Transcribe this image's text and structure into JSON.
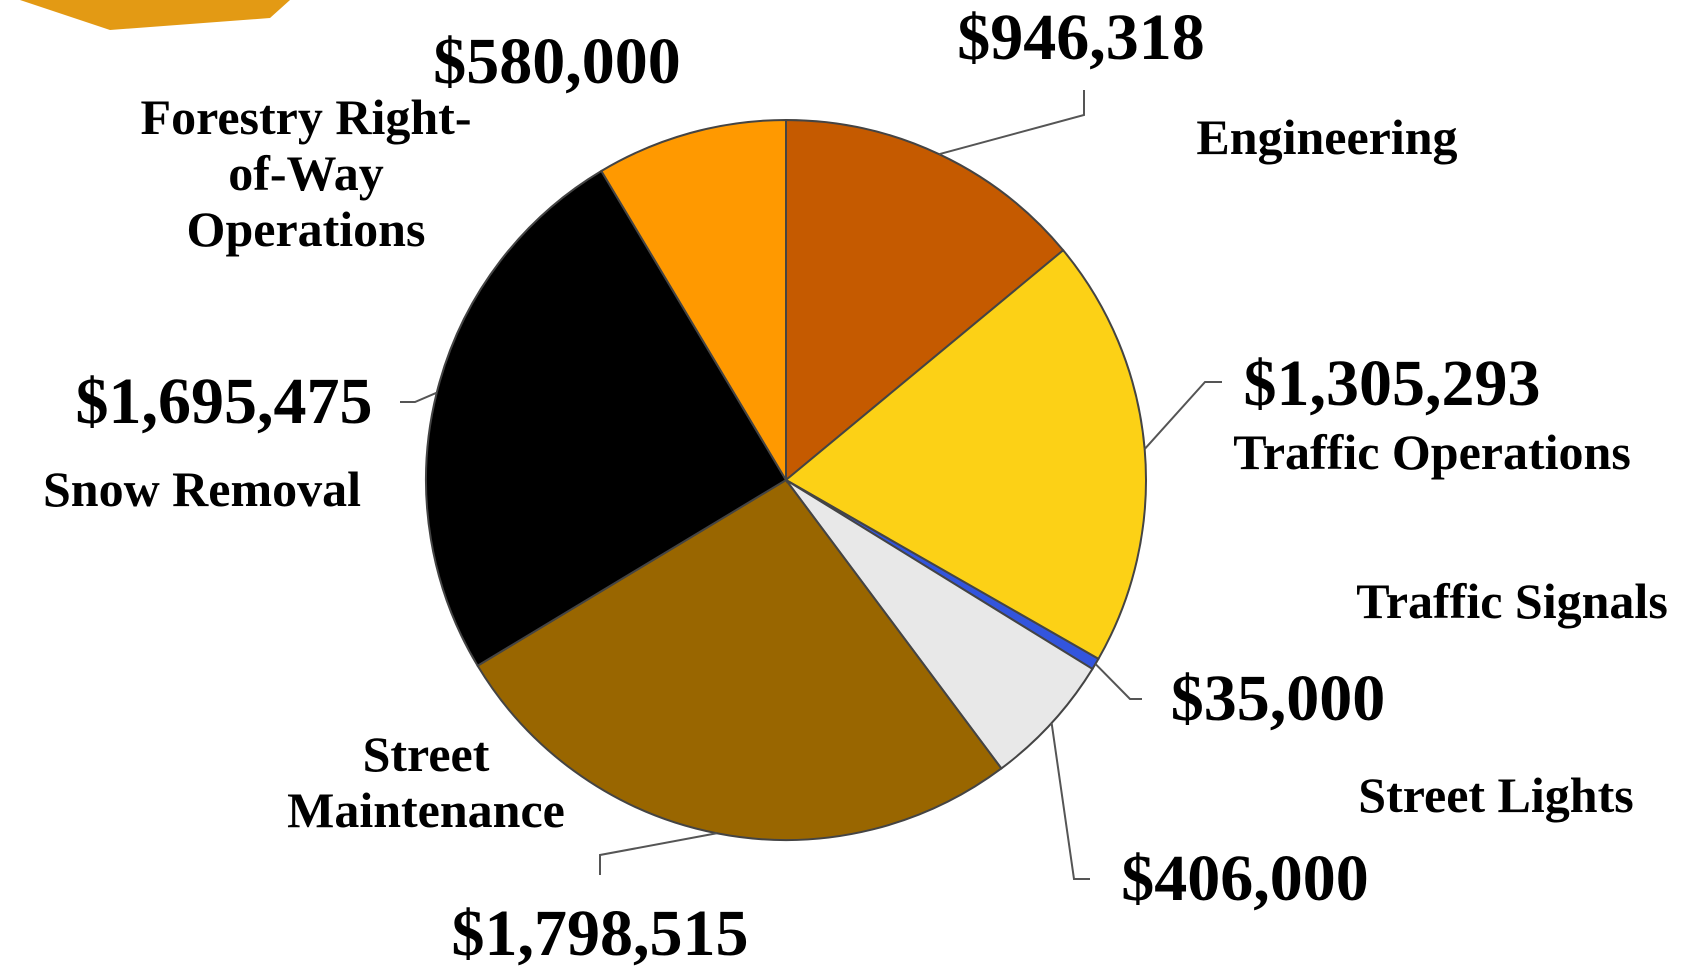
{
  "chart_data": {
    "type": "pie",
    "categories": [
      "Engineering",
      "Traffic Operations",
      "Traffic Signals",
      "Street Lights",
      "Street Maintenance",
      "Snow Removal",
      "Forestry Right-of-Way Operations"
    ],
    "values": [
      946318,
      1305293,
      35000,
      406000,
      1798515,
      1695475,
      580000
    ],
    "value_labels": [
      "$946,318",
      "$1,305,293",
      "$35,000",
      "$406,000",
      "$1,798,515",
      "$1,695,475",
      "$580,000"
    ],
    "colors": [
      "#c55a00",
      "#fcd116",
      "#3355dd",
      "#e8e8e8",
      "#996600",
      "#000000",
      "#ff9900"
    ]
  }
}
